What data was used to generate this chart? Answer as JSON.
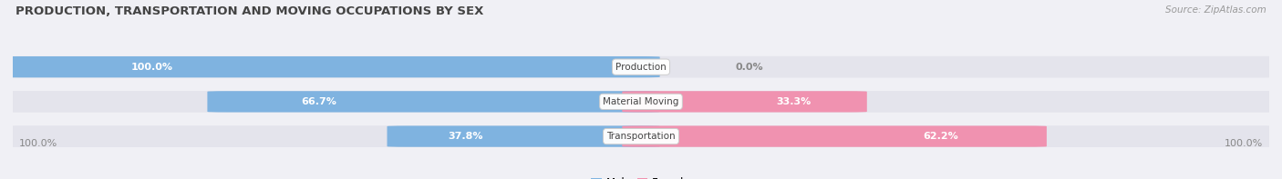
{
  "title": "PRODUCTION, TRANSPORTATION AND MOVING OCCUPATIONS BY SEX",
  "source": "Source: ZipAtlas.com",
  "categories": [
    "Production",
    "Material Moving",
    "Transportation"
  ],
  "male_pct": [
    100.0,
    66.7,
    37.8
  ],
  "female_pct": [
    0.0,
    33.3,
    62.2
  ],
  "male_color": "#7fb3e0",
  "female_color": "#f092b0",
  "bar_bg_color": "#e4e4ec",
  "title_fontsize": 9.5,
  "source_fontsize": 7.5,
  "pct_fontsize": 8.0,
  "category_fontsize": 7.5,
  "legend_fontsize": 8.5,
  "xlim_left_label": "100.0%",
  "xlim_right_label": "100.0%",
  "fig_bg_color": "#f0f0f5"
}
